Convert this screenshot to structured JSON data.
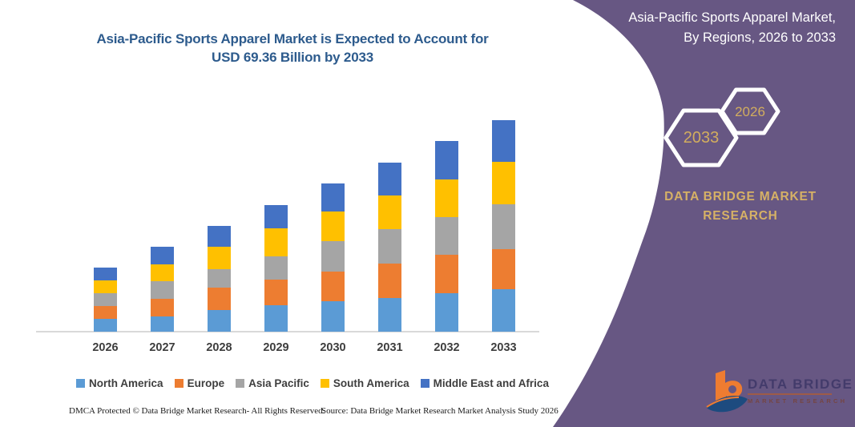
{
  "infographic": {
    "left_title": {
      "line1": "Asia-Pacific Sports Apparel Market is Expected to Account for",
      "line2": "USD 69.36 Billion by 2033"
    },
    "panel": {
      "title_line1": "Asia-Pacific Sports Apparel Market,",
      "title_line2": "By Regions, 2026 to 2033",
      "hexagons": [
        {
          "label": "2033"
        },
        {
          "label": "2026"
        }
      ],
      "brand_line1": "DATA BRIDGE MARKET",
      "brand_line2": "RESEARCH",
      "bg_color": "#675783",
      "gold_color": "#d2ad5e"
    },
    "logo": {
      "name_line": "DATA BRIDGE",
      "tagline": "MARKET RESEARCH"
    },
    "footer": {
      "dmca": "DMCA Protected © Data Bridge Market Research-  All Rights Reserved.",
      "source": "Source: Data Bridge Market Research  Market Analysis Study 2026"
    }
  },
  "chart_data": {
    "type": "bar",
    "stacked": true,
    "title": "Asia-Pacific Sports Apparel Market, By Regions, 2026 to 2033",
    "unit": "USD Billion",
    "categories": [
      "2026",
      "2027",
      "2028",
      "2029",
      "2030",
      "2031",
      "2032",
      "2033"
    ],
    "series": [
      {
        "name": "North America",
        "color": "#5B9BD5",
        "values": [
          4.3,
          5.0,
          7.0,
          8.6,
          10.0,
          11.0,
          12.6,
          13.9
        ]
      },
      {
        "name": "Europe",
        "color": "#ED7D31",
        "values": [
          4.2,
          5.7,
          7.6,
          8.4,
          9.7,
          11.3,
          12.6,
          13.3
        ]
      },
      {
        "name": "Asia Pacific",
        "color": "#A5A5A5",
        "values": [
          4.1,
          5.9,
          6.0,
          7.8,
          10.0,
          11.3,
          12.3,
          14.5
        ]
      },
      {
        "name": "South America",
        "color": "#FFC000",
        "values": [
          4.2,
          5.5,
          7.3,
          9.1,
          9.7,
          11.0,
          12.3,
          14.1
        ]
      },
      {
        "name": "Middle East and Africa",
        "color": "#4472C4",
        "values": [
          4.2,
          5.7,
          6.8,
          7.6,
          9.2,
          10.8,
          12.7,
          13.56
        ]
      }
    ],
    "totals": [
      21.0,
      27.8,
      34.7,
      41.5,
      48.6,
      55.4,
      62.5,
      69.36
    ],
    "highlight": "USD 69.36 Billion by 2033",
    "ylim": [
      0,
      72
    ],
    "grid": false,
    "legend_position": "bottom"
  }
}
